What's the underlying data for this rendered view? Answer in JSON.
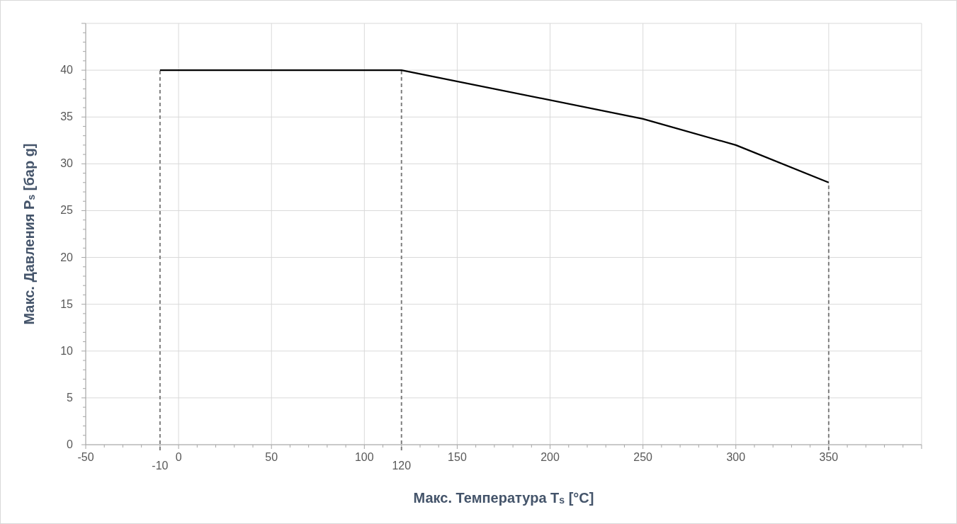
{
  "chart_data": {
    "type": "line",
    "xlabel": "Макс. Температура T$_{s}$ [°C]",
    "ylabel": "Макс. Давления P$_{s}$ [бар g]",
    "x": [
      -10,
      120,
      250,
      300,
      350
    ],
    "series": [
      {
        "color": "#000000",
        "values": [
          40,
          40,
          34.8,
          32,
          28
        ]
      }
    ],
    "xlim": [
      -50,
      400
    ],
    "xticks": [
      -50,
      0,
      50,
      100,
      150,
      200,
      250,
      300,
      350,
      {
        "value": 400,
        "label": null
      }
    ],
    "ylim": [
      0,
      45
    ],
    "yticks": [
      0,
      5,
      10,
      15,
      20,
      25,
      30,
      35,
      40,
      {
        "value": 45,
        "label": null
      }
    ],
    "grid": true,
    "marker": "none",
    "line_style": "solid",
    "ref_lines": [
      {
        "axis": "x",
        "value": -10,
        "label": "-10",
        "color": "#7f7f7f",
        "line_style": "dashed"
      },
      {
        "axis": "x",
        "value": 120,
        "label": "120",
        "color": "#7f7f7f",
        "line_style": "dashed"
      },
      {
        "axis": "x",
        "value": 350,
        "label": null,
        "color": "#7f7f7f",
        "line_style": "dashed"
      }
    ]
  }
}
